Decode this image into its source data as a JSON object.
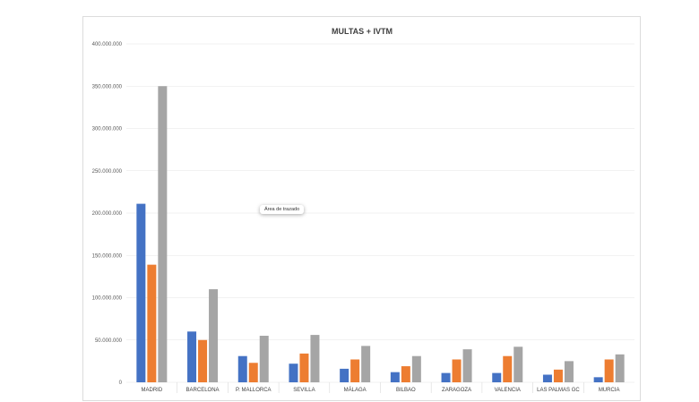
{
  "colors": {
    "series1": "#4472c4",
    "series2": "#ed7d31",
    "series3": "#a5a5a5",
    "grid": "#e6e6e6"
  },
  "tooltip": "Área de trazado",
  "chart_data": {
    "type": "bar",
    "title": "MULTAS + IVTM",
    "categories": [
      "MADRID",
      "BARCELONA",
      "P. MALLORCA",
      "SEVILLA",
      "MÁLAGA",
      "BILBAO",
      "ZARAGOZA",
      "VALENCIA",
      "LAS PALMAS GC",
      "MURCIA"
    ],
    "y_ticks": [
      "0",
      "50.000.000",
      "100.000.000",
      "150.000.000",
      "200.000.000",
      "250.000.000",
      "300.000.000",
      "350.000.000",
      "400.000.000"
    ],
    "ylim": [
      0,
      400000000
    ],
    "grid": true,
    "series": [
      {
        "values": [
          211000000,
          60000000,
          31000000,
          22000000,
          16000000,
          12000000,
          11000000,
          11000000,
          9000000,
          6000000
        ]
      },
      {
        "values": [
          139000000,
          50000000,
          23000000,
          34000000,
          27000000,
          19000000,
          27000000,
          31000000,
          15000000,
          27000000
        ]
      },
      {
        "values": [
          350000000,
          110000000,
          55000000,
          56000000,
          43000000,
          31000000,
          39000000,
          42000000,
          25000000,
          33000000
        ]
      }
    ]
  }
}
